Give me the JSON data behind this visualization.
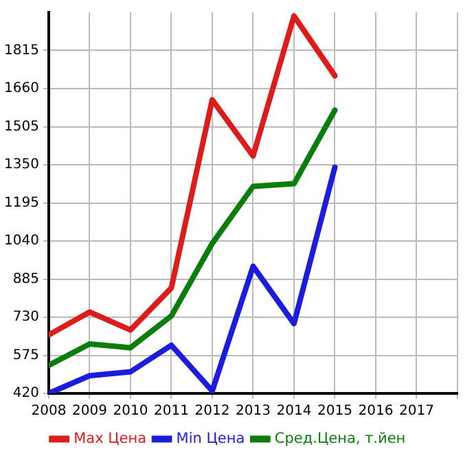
{
  "chart_data": {
    "type": "line",
    "x": [
      2008,
      2009,
      2010,
      2011,
      2012,
      2013,
      2014,
      2015
    ],
    "series": [
      {
        "name": "Max Цена",
        "color": "#dd1c1c",
        "values": [
          658,
          751,
          678,
          849,
          1614,
          1386,
          1955,
          1712
        ]
      },
      {
        "name": "Min Цена",
        "color": "#1c1cdd",
        "values": [
          420,
          492,
          508,
          616,
          430,
          937,
          704,
          1340
        ]
      },
      {
        "name": "Сред.Цена, т.йен",
        "color": "#0a7d0a",
        "values": [
          534,
          621,
          606,
          735,
          1030,
          1262,
          1273,
          1572
        ]
      }
    ],
    "xlim": [
      2008,
      2018
    ],
    "xticks": [
      2008,
      2009,
      2010,
      2011,
      2012,
      2013,
      2014,
      2015,
      2016,
      2017,
      {
        "value": 2018,
        "label": null
      }
    ],
    "ylim": [
      420,
      1970
    ],
    "yticks": [
      420,
      575,
      730,
      885,
      1040,
      1195,
      1350,
      1505,
      1660,
      1815
    ],
    "grid": true,
    "legend": "bottom",
    "marker": "none",
    "line_style": "solid"
  }
}
